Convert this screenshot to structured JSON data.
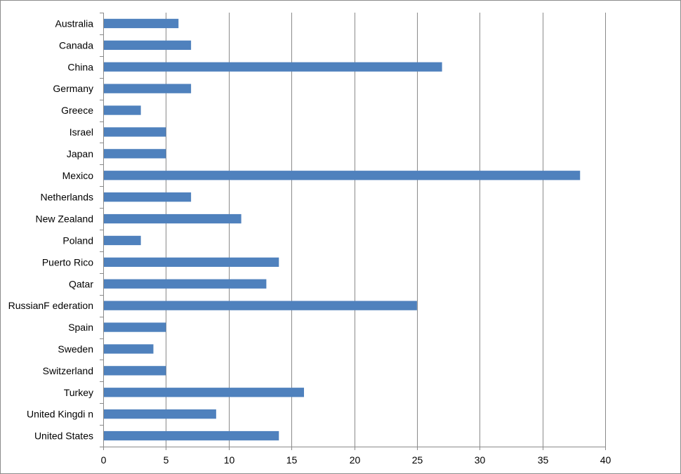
{
  "chart_data": {
    "type": "bar",
    "orientation": "horizontal",
    "categories": [
      "Australia",
      "Canada",
      "China",
      "Germany",
      "Greece",
      "Israel",
      "Japan",
      "Mexico",
      "Netherlands",
      "New Zealand",
      "Poland",
      "Puerto Rico",
      "Qatar",
      "RussianF ederation",
      "Spain",
      "Sweden",
      "Switzerland",
      "Turkey",
      "United Kingdi n",
      "United States"
    ],
    "values": [
      6,
      7,
      27,
      7,
      3,
      5,
      5,
      38,
      7,
      11,
      3,
      14,
      13,
      25,
      5,
      4,
      5,
      16,
      9,
      14
    ],
    "xlim": [
      0,
      40
    ],
    "xticks": [
      0,
      5,
      10,
      15,
      20,
      25,
      30,
      35,
      40
    ],
    "title": "",
    "xlabel": "",
    "ylabel": "",
    "grid": "vertical",
    "legend": "none",
    "bar_color": "#4f81bd",
    "grid_color": "#8a8a8a"
  }
}
